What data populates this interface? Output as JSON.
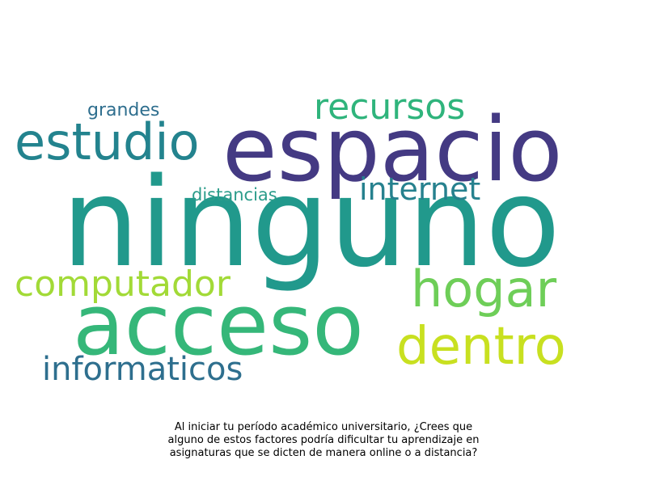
{
  "wordcloud": {
    "words": [
      {
        "text": "ninguno",
        "color": "#21998c"
      },
      {
        "text": "espacio",
        "color": "#443a83"
      },
      {
        "text": "acceso",
        "color": "#35b779"
      },
      {
        "text": "estudio",
        "color": "#23838e"
      },
      {
        "text": "recursos",
        "color": "#2fb47c"
      },
      {
        "text": "internet",
        "color": "#26818e"
      },
      {
        "text": "hogar",
        "color": "#6ece58"
      },
      {
        "text": "dentro",
        "color": "#c8e020"
      },
      {
        "text": "computador",
        "color": "#a2da37"
      },
      {
        "text": "informaticos",
        "color": "#2e6f8e"
      },
      {
        "text": "grandes",
        "color": "#2e6e8e"
      },
      {
        "text": "distancias",
        "color": "#2b9c8a"
      }
    ]
  },
  "caption": {
    "line1": "Al iniciar tu período académico universitario, ¿Crees que",
    "line2": "alguno de estos factores podría dificultar tu aprendizaje en",
    "line3": "asignaturas que se dicten de manera online o a distancia?"
  }
}
